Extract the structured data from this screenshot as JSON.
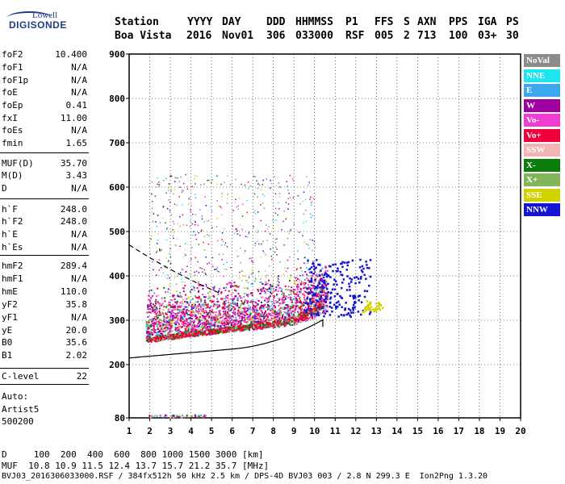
{
  "logo": {
    "line1": "Lowell",
    "line2": "DIGISONDE"
  },
  "header": {
    "labels": [
      "Station",
      "YYYY",
      "DAY",
      "DDD",
      "HHMMSS",
      "P1",
      "FFS",
      "S",
      "AXN",
      "PPS",
      "IGA",
      "PS"
    ],
    "values": [
      "Boa Vista",
      "2016",
      "Nov01",
      "306",
      "033000",
      "RSF",
      "005",
      "2",
      "713",
      "100",
      "03+",
      "30"
    ]
  },
  "params": [
    {
      "name": "foF2",
      "value": "10.400"
    },
    {
      "name": "foF1",
      "value": "N/A"
    },
    {
      "name": "foF1p",
      "value": "N/A"
    },
    {
      "name": "foE",
      "value": "N/A"
    },
    {
      "name": "foEp",
      "value": "0.41"
    },
    {
      "name": "fxI",
      "value": "11.00"
    },
    {
      "name": "foEs",
      "value": "N/A"
    },
    {
      "name": "fmin",
      "value": "1.65"
    },
    {
      "name": "MUF(D)",
      "value": "35.70"
    },
    {
      "name": "M(D)",
      "value": "3.43"
    },
    {
      "name": "D",
      "value": "N/A"
    },
    {
      "name": "h`F",
      "value": "248.0"
    },
    {
      "name": "h`F2",
      "value": "248.0"
    },
    {
      "name": "h`E",
      "value": "N/A"
    },
    {
      "name": "h`Es",
      "value": "N/A"
    },
    {
      "name": "hmF2",
      "value": "289.4"
    },
    {
      "name": "hmF1",
      "value": "N/A"
    },
    {
      "name": "hmE",
      "value": "110.0"
    },
    {
      "name": "yF2",
      "value": "35.8"
    },
    {
      "name": "yF1",
      "value": "N/A"
    },
    {
      "name": "yE",
      "value": "20.0"
    },
    {
      "name": "B0",
      "value": "35.6"
    },
    {
      "name": "B1",
      "value": "2.02"
    },
    {
      "name": "C-level",
      "value": "22"
    }
  ],
  "auto": {
    "line1": "Auto:",
    "line2": "Artist5",
    "line3": "500200"
  },
  "legend": [
    {
      "label": "NoVal",
      "color": "#8c8c8c"
    },
    {
      "label": "NNE",
      "color": "#1ee6f0"
    },
    {
      "label": "E",
      "color": "#3ca8f0"
    },
    {
      "label": "W",
      "color": "#a000a0"
    },
    {
      "label": "Vo-",
      "color": "#f03cd2"
    },
    {
      "label": "Vo+",
      "color": "#f0003c"
    },
    {
      "label": "SSW",
      "color": "#f5b4b4"
    },
    {
      "label": "X-",
      "color": "#0a7d0a"
    },
    {
      "label": "X+",
      "color": "#82b45a"
    },
    {
      "label": "SSE",
      "color": "#d2d200"
    },
    {
      "label": "NNW",
      "color": "#1414d2"
    }
  ],
  "chart_data": {
    "type": "scatter",
    "xlim": [
      1,
      20
    ],
    "ylim": [
      80,
      900
    ],
    "x_ticks": [
      "1",
      "2",
      "3",
      "4",
      "5",
      "6",
      "7",
      "8",
      "9",
      "10",
      "11",
      "12",
      "13",
      "14",
      "15",
      "16",
      "17",
      "18",
      "19",
      "20"
    ],
    "y_ticks": [
      "900",
      "800",
      "700",
      "600",
      "500",
      "400",
      "300",
      "200",
      "80"
    ],
    "grid": true
  },
  "footer": {
    "line1": "D     100  200  400  600  800 1000 1500 3000 [km]",
    "line2": "MUF  10.8 10.9 11.5 12.4 13.7 15.7 21.2 35.7 [MHz]",
    "line3": "BVJ03_2016306033000.RSF / 384fx512h 50 kHz 2.5 km / DPS-4D BVJ03 003 / 2.8 N 299.3 E  Ion2Png 1.3.20"
  }
}
